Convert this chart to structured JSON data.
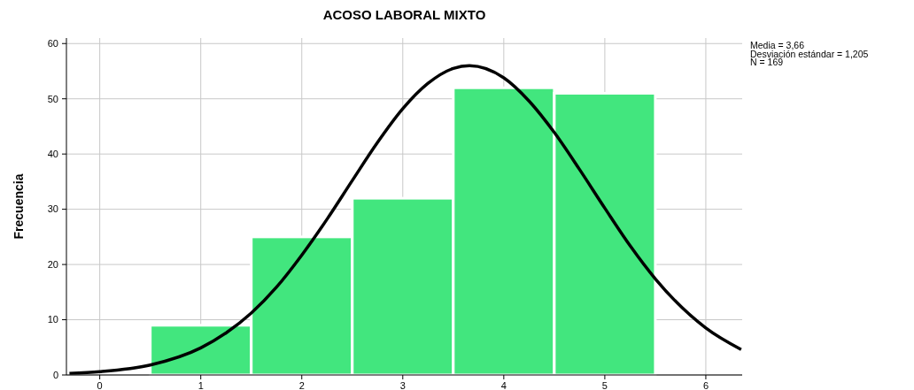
{
  "chart_data": {
    "type": "histogram",
    "title": "ACOSO LABORAL MIXTO",
    "ylabel": "Frecuencia",
    "annotations": [
      "Media = 3,66",
      "Desviación estándar = 1,205",
      "N = 169"
    ],
    "bins": [
      0.5,
      1.5,
      2.5,
      3.5,
      4.5,
      5.5
    ],
    "series": [
      {
        "color": "#42e67e",
        "values": [
          9,
          25,
          32,
          52,
          51
        ]
      },
      {
        "type": "line",
        "color": "#000000",
        "x": [
          -0.3,
          0,
          0.5,
          1,
          1.25,
          1.5,
          1.75,
          2,
          2.25,
          2.5,
          2.75,
          3,
          3.25,
          3.5,
          3.66,
          4,
          4.25,
          4.5,
          4.75,
          5,
          5.25,
          5.5,
          6,
          6.35
        ],
        "values": [
          0.3,
          0.6,
          1.8,
          4.9,
          7.6,
          11.2,
          15.9,
          21.7,
          28.2,
          35.2,
          42.1,
          48.2,
          52.8,
          55.5,
          56,
          53.8,
          49.6,
          43.9,
          37.2,
          30.2,
          23.4,
          17.4,
          8.5,
          4.6
        ]
      }
    ],
    "xlim": [
      -0.33,
      6.36
    ],
    "xticks": [
      0,
      1,
      2,
      3,
      4,
      5,
      6
    ],
    "ylim": [
      0,
      61
    ],
    "yticks": [
      0,
      10,
      20,
      30,
      40,
      50,
      60
    ],
    "grid": true,
    "line_style": "solid"
  }
}
